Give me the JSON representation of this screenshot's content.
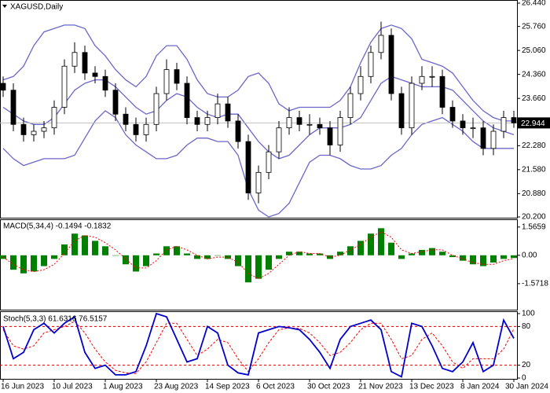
{
  "chart_data": [
    {
      "type": "candlestick",
      "title": "XAGUSD,Daily",
      "categories": [
        "16 Jun 2023",
        null,
        null,
        null,
        null,
        "10 Jul 2023",
        null,
        null,
        null,
        null,
        "1 Aug 2023",
        null,
        null,
        null,
        null,
        "23 Aug 2023",
        null,
        null,
        null,
        null,
        "14 Sep 2023",
        null,
        null,
        null,
        null,
        "6 Oct 2023",
        null,
        null,
        null,
        null,
        "30 Oct 2023",
        null,
        null,
        null,
        null,
        "21 Nov 2023",
        null,
        null,
        null,
        null,
        "13 Dec 2023",
        null,
        null,
        null,
        null,
        "8 Jan 2024",
        null,
        null,
        null,
        null,
        "30 Jan 2024"
      ],
      "open": [
        24.1,
        23.9,
        22.9,
        22.6,
        22.7,
        22.8,
        23.4,
        24.6,
        25.0,
        24.4,
        24.3,
        23.9,
        23.2,
        22.9,
        22.6,
        22.9,
        23.8,
        24.5,
        24.1,
        23.1,
        22.9,
        23.1,
        23.5,
        23.0,
        22.4,
        20.9,
        21.5,
        22.1,
        22.8,
        23.1,
        22.9,
        22.9,
        22.8,
        22.3,
        23.1,
        23.8,
        24.3,
        25.0,
        25.5,
        23.8,
        22.8,
        24.1,
        24.3,
        24.3,
        23.4,
        23.0,
        22.8,
        22.8,
        22.2,
        22.7,
        23.1
      ],
      "high": [
        24.3,
        24.1,
        23.1,
        22.9,
        23.0,
        23.6,
        24.8,
        25.3,
        25.2,
        24.6,
        24.5,
        24.1,
        23.4,
        23.1,
        23.1,
        24.0,
        24.8,
        24.7,
        24.3,
        23.3,
        23.3,
        23.8,
        23.7,
        23.2,
        22.6,
        21.7,
        22.3,
        23.0,
        23.4,
        23.3,
        23.2,
        23.1,
        23.0,
        23.3,
        24.0,
        24.6,
        25.2,
        25.9,
        25.7,
        24.0,
        24.3,
        24.6,
        24.6,
        24.5,
        23.6,
        23.2,
        23.1,
        23.0,
        22.9,
        23.3,
        23.3
      ],
      "low": [
        23.7,
        22.7,
        22.4,
        22.4,
        22.5,
        22.6,
        23.2,
        24.4,
        24.2,
        24.1,
        23.7,
        23.0,
        22.7,
        22.4,
        22.4,
        22.7,
        23.6,
        23.9,
        22.9,
        22.7,
        22.7,
        22.9,
        22.8,
        22.2,
        20.7,
        20.6,
        21.3,
        21.9,
        22.6,
        22.7,
        22.6,
        22.6,
        22.0,
        22.1,
        22.9,
        23.6,
        24.1,
        24.8,
        23.6,
        22.6,
        22.6,
        23.9,
        24.0,
        23.2,
        22.8,
        22.6,
        22.5,
        22.0,
        22.0,
        22.5,
        22.8
      ],
      "close": [
        23.9,
        22.9,
        22.6,
        22.7,
        22.8,
        23.4,
        24.6,
        25.0,
        24.4,
        24.3,
        23.9,
        23.2,
        22.9,
        22.6,
        22.9,
        23.8,
        24.5,
        24.1,
        23.1,
        22.9,
        23.1,
        23.5,
        23.0,
        22.4,
        20.9,
        21.5,
        22.1,
        22.8,
        23.1,
        22.9,
        22.9,
        22.8,
        22.3,
        23.1,
        23.8,
        24.3,
        25.0,
        25.5,
        23.8,
        22.8,
        24.1,
        24.3,
        24.3,
        23.4,
        23.0,
        22.8,
        22.8,
        22.2,
        22.7,
        23.1,
        22.944
      ],
      "up_color": "#ffffff",
      "down_color": "#000000",
      "edge_color": "#000000",
      "bands": {
        "color": "#6b66cc",
        "upper": [
          24.2,
          24.3,
          24.6,
          25.2,
          25.6,
          25.7,
          25.8,
          25.8,
          25.7,
          25.2,
          24.9,
          24.5,
          24.2,
          24.0,
          24.3,
          24.9,
          25.2,
          25.2,
          24.8,
          24.2,
          23.8,
          23.7,
          23.7,
          23.9,
          24.3,
          24.4,
          24.1,
          23.5,
          23.3,
          23.4,
          23.4,
          23.4,
          23.4,
          23.6,
          24.0,
          24.7,
          25.3,
          25.7,
          25.8,
          25.7,
          25.4,
          24.8,
          24.7,
          24.6,
          24.4,
          24.0,
          23.6,
          23.3,
          23.1,
          23.0,
          23.0
        ],
        "middle": [
          23.4,
          23.2,
          23.0,
          22.9,
          22.9,
          23.1,
          23.5,
          23.9,
          24.1,
          24.2,
          24.2,
          24.0,
          23.7,
          23.4,
          23.2,
          23.3,
          23.6,
          23.8,
          23.7,
          23.4,
          23.2,
          23.1,
          23.2,
          23.2,
          22.8,
          22.4,
          22.1,
          21.9,
          22.0,
          22.3,
          22.6,
          22.8,
          22.8,
          22.8,
          22.9,
          23.1,
          23.6,
          24.1,
          24.3,
          24.2,
          24.1,
          24.0,
          24.0,
          24.0,
          23.9,
          23.6,
          23.3,
          23.0,
          22.8,
          22.7,
          22.6
        ],
        "lower": [
          22.2,
          21.9,
          21.7,
          21.8,
          21.9,
          21.9,
          21.9,
          22.0,
          22.5,
          23.0,
          23.3,
          23.1,
          22.6,
          22.3,
          22.1,
          21.9,
          21.9,
          22.0,
          22.3,
          22.5,
          22.5,
          22.4,
          22.4,
          22.0,
          21.0,
          20.4,
          20.2,
          20.3,
          20.6,
          21.2,
          21.8,
          22.0,
          22.0,
          21.9,
          21.7,
          21.6,
          21.6,
          21.7,
          22.0,
          22.2,
          22.6,
          22.9,
          23.0,
          23.1,
          22.9,
          22.7,
          22.4,
          22.2,
          22.2,
          22.2,
          22.2
        ]
      },
      "ylim": [
        20.2,
        26.44
      ],
      "yticks": [
        {
          "value": 26.44,
          "label": "26.440"
        },
        {
          "value": 25.76,
          "label": "25.760"
        },
        {
          "value": 25.06,
          "label": "25.060"
        },
        {
          "value": 24.36,
          "label": "24.360"
        },
        {
          "value": 23.66,
          "label": "23.660"
        },
        {
          "value": 22.28,
          "label": "22.280"
        },
        {
          "value": 21.58,
          "label": "21.580"
        },
        {
          "value": 20.88,
          "label": "20.880"
        },
        {
          "value": 20.2,
          "label": "20.200"
        }
      ]
    },
    {
      "type": "macd",
      "title": "MACD(5,34,4) -0.1494 -0.1832",
      "histogram": {
        "color": "#008000",
        "values": [
          -0.2,
          -0.8,
          -1.0,
          -0.9,
          -0.6,
          -0.2,
          0.6,
          1.2,
          1.1,
          0.8,
          0.5,
          0.0,
          -0.5,
          -0.9,
          -0.6,
          0.1,
          0.5,
          0.5,
          0.1,
          -0.2,
          -0.2,
          0.0,
          -0.2,
          -0.6,
          -1.5,
          -1.3,
          -0.8,
          -0.2,
          0.2,
          0.2,
          0.1,
          0.1,
          -0.2,
          0.2,
          0.5,
          0.8,
          1.2,
          1.5,
          0.7,
          -0.2,
          0.1,
          0.3,
          0.4,
          0.2,
          -0.1,
          -0.3,
          -0.5,
          -0.6,
          -0.4,
          -0.2,
          -0.1494
        ]
      },
      "signal": {
        "color": "#ff0000",
        "values": [
          -0.1,
          -0.5,
          -0.8,
          -0.9,
          -0.8,
          -0.5,
          0.1,
          0.8,
          1.1,
          1.0,
          0.7,
          0.3,
          -0.2,
          -0.7,
          -0.7,
          -0.3,
          0.3,
          0.5,
          0.3,
          0.0,
          -0.2,
          -0.1,
          -0.1,
          -0.4,
          -1.0,
          -1.3,
          -1.0,
          -0.5,
          0.0,
          0.2,
          0.1,
          0.1,
          -0.1,
          0.0,
          0.3,
          0.6,
          1.0,
          1.3,
          1.0,
          0.3,
          0.1,
          0.2,
          0.3,
          0.3,
          0.0,
          -0.2,
          -0.4,
          -0.5,
          -0.5,
          -0.3,
          -0.1832
        ]
      },
      "ylim": [
        -2.97,
        1.82
      ],
      "yticks": [
        1.5659,
        {
          "value": 0,
          "label": "0.00"
        },
        -1.5718
      ]
    },
    {
      "type": "stochastic",
      "title": "Stoch(5,3,3) 61.6316 76.5157",
      "main": {
        "color": "#0000cd",
        "values": [
          80,
          30,
          40,
          75,
          85,
          70,
          85,
          95,
          40,
          15,
          20,
          5,
          5,
          10,
          50,
          100,
          95,
          60,
          25,
          30,
          80,
          70,
          20,
          8,
          5,
          70,
          75,
          80,
          78,
          75,
          60,
          40,
          15,
          60,
          80,
          85,
          90,
          75,
          10,
          2,
          85,
          80,
          50,
          15,
          10,
          25,
          55,
          10,
          20,
          90,
          61.6316
        ]
      },
      "signal": {
        "color": "#ff0000",
        "values": [
          75,
          50,
          45,
          50,
          70,
          75,
          80,
          88,
          70,
          45,
          25,
          12,
          8,
          7,
          25,
          55,
          85,
          85,
          60,
          35,
          45,
          60,
          55,
          30,
          10,
          30,
          55,
          75,
          78,
          77,
          70,
          55,
          35,
          40,
          55,
          75,
          85,
          85,
          60,
          30,
          35,
          60,
          70,
          50,
          25,
          15,
          30,
          30,
          30,
          45,
          76.5157
        ]
      },
      "levels": [
        20,
        80
      ],
      "ylim": [
        0,
        100
      ],
      "yticks": [
        100,
        80,
        20,
        0
      ]
    }
  ]
}
